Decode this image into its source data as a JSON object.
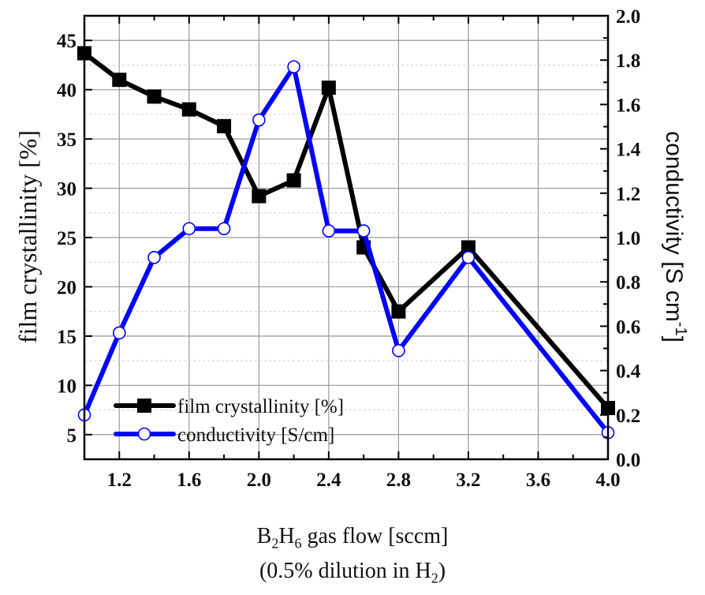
{
  "chart_data": {
    "type": "line",
    "title": "",
    "xlabel": "B2H6 gas flow [sccm] (0.5% dilution in H2)",
    "ylabel": "film crystallinity [%]",
    "y2label": "conductivity [S cm-1]",
    "x": [
      1.0,
      1.2,
      1.4,
      1.6,
      1.8,
      2.0,
      2.2,
      2.4,
      2.6,
      2.8,
      3.2,
      4.0
    ],
    "series": [
      {
        "name": "film crystallinity [%]",
        "axis": "left",
        "color": "#000000",
        "marker": "filled-square",
        "values": [
          43.7,
          41.0,
          39.3,
          38.0,
          36.3,
          29.2,
          30.8,
          40.2,
          24.0,
          17.5,
          24.0,
          7.7
        ]
      },
      {
        "name": "conductivity [S/cm]",
        "axis": "right",
        "color": "#0000ff",
        "marker": "open-circle",
        "values": [
          0.2,
          0.57,
          0.91,
          1.04,
          1.04,
          1.53,
          1.77,
          1.03,
          1.03,
          0.49,
          0.91,
          0.12
        ]
      }
    ],
    "xlim": [
      1.0,
      4.0
    ],
    "ylim": [
      2.5,
      47.5
    ],
    "y2lim": [
      0.0,
      2.0
    ],
    "xticks": [
      "1.2",
      "1.6",
      "2.0",
      "2.4",
      "2.8",
      "3.2",
      "3.6",
      "4.0"
    ],
    "yticks": [
      "5",
      "10",
      "15",
      "20",
      "25",
      "30",
      "35",
      "40",
      "45"
    ],
    "y2ticks": [
      "0.0",
      "0.2",
      "0.4",
      "0.6",
      "0.8",
      "1.0",
      "1.2",
      "1.4",
      "1.6",
      "1.8",
      "2.0"
    ],
    "grid": true,
    "legend_position": "lower-left"
  },
  "labels": {
    "y_left": "film crystallinity [%]",
    "y_right_main": "conductivity [S cm",
    "y_right_sup": "-1",
    "y_right_close": "]",
    "x_main_b": "B",
    "x_sub_2": "2",
    "x_main_h": "H",
    "x_sub_6": "6",
    "x_main_rest": " gas flow [sccm]",
    "x_line2_pre": "(0.5% dilution in H",
    "x_line2_sub": "2",
    "x_line2_post": ")"
  }
}
